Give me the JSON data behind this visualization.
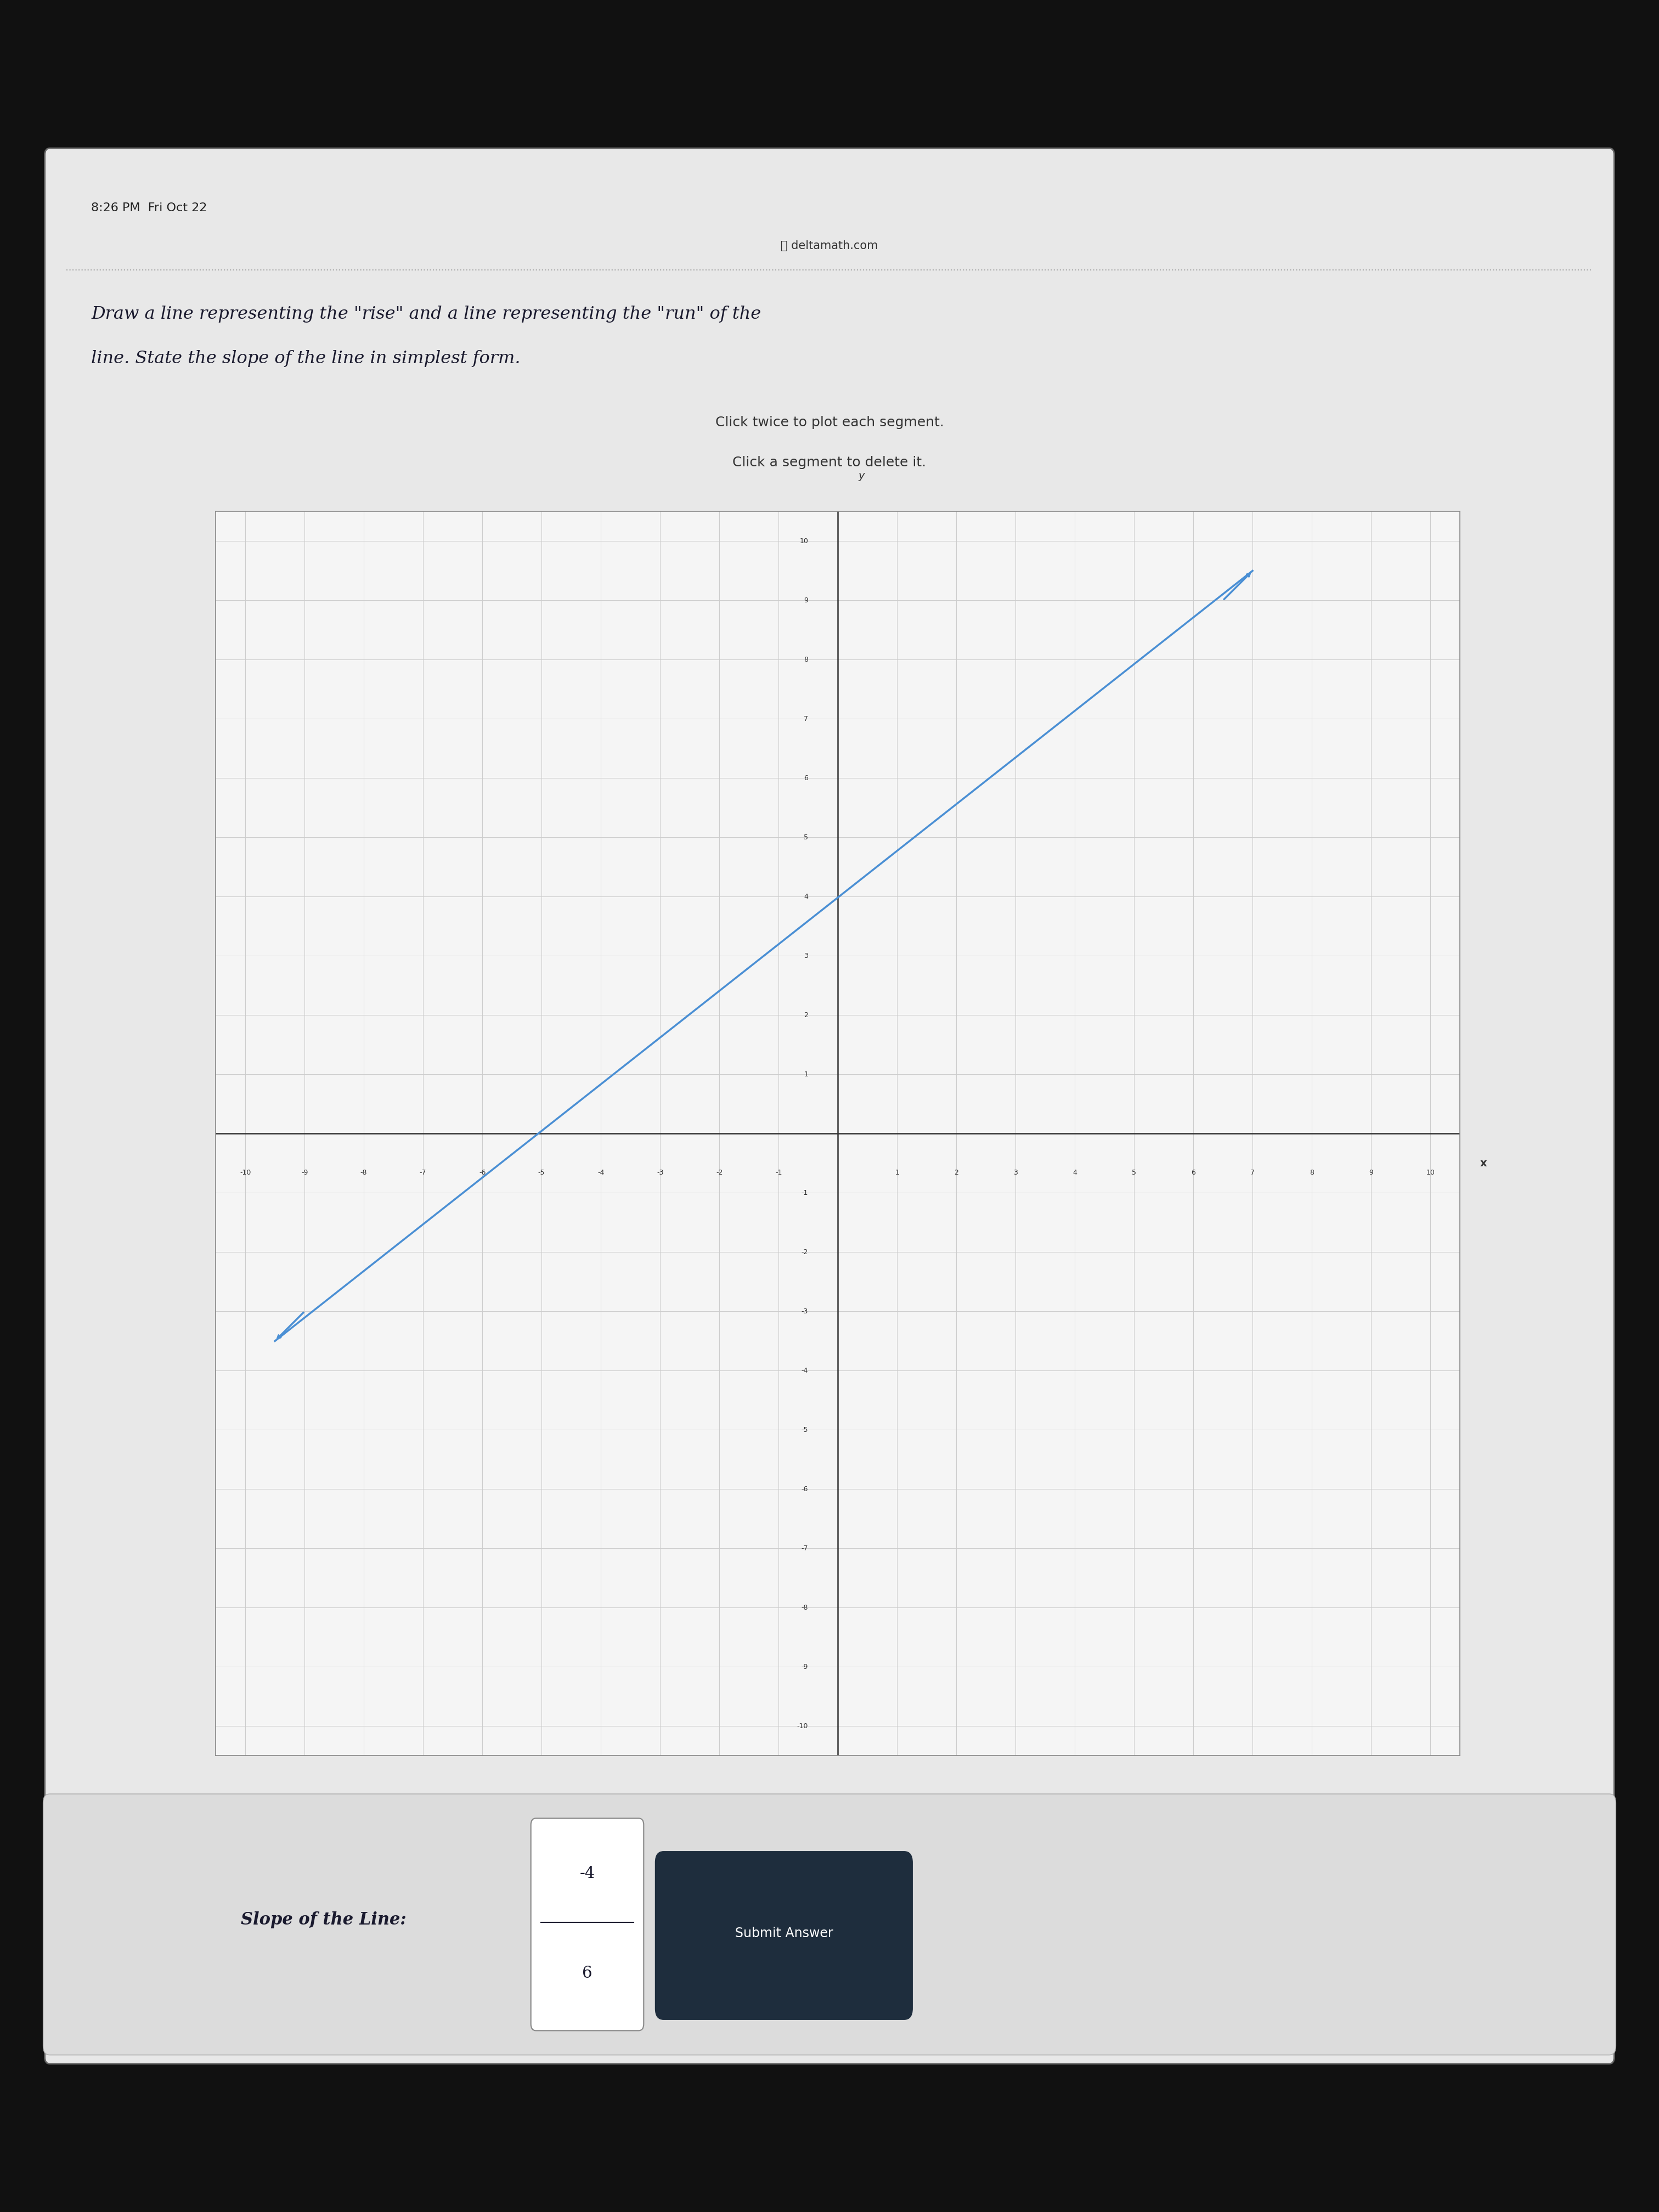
{
  "background_outer": "#111111",
  "background_screen": "#e8e8e8",
  "status_bar_text": "8:26 PM  Fri Oct 22",
  "url_text": "deltamath.com",
  "instruction_line1": "Draw a line representing the \"rise\" and a line representing the \"run\" of the",
  "instruction_line2": "line. State the slope of the line in simplest form.",
  "click_instruction1": "Click twice to plot each segment.",
  "click_instruction2": "Click a segment to delete it.",
  "grid_color": "#cccccc",
  "axis_color": "#333333",
  "line_color": "#4a8fd4",
  "line_x1": -9.5,
  "line_y1": -3.5,
  "line_x2": 7.0,
  "line_y2": 9.5,
  "slope_numerator": "-4",
  "slope_denominator": "6",
  "submit_button_text": "Submit Answer",
  "submit_button_color": "#1e2d3d",
  "xlabel": "x",
  "ylabel": "y",
  "xlim": [
    -10.5,
    10.5
  ],
  "ylim": [
    -10.5,
    10.5
  ],
  "xticks": [
    -10,
    -9,
    -8,
    -7,
    -6,
    -5,
    -4,
    -3,
    -2,
    -1,
    1,
    2,
    3,
    4,
    5,
    6,
    7,
    8,
    9,
    10
  ],
  "yticks": [
    -10,
    -9,
    -8,
    -7,
    -6,
    -5,
    -4,
    -3,
    -2,
    -1,
    1,
    2,
    3,
    4,
    5,
    6,
    7,
    8,
    9,
    10
  ]
}
